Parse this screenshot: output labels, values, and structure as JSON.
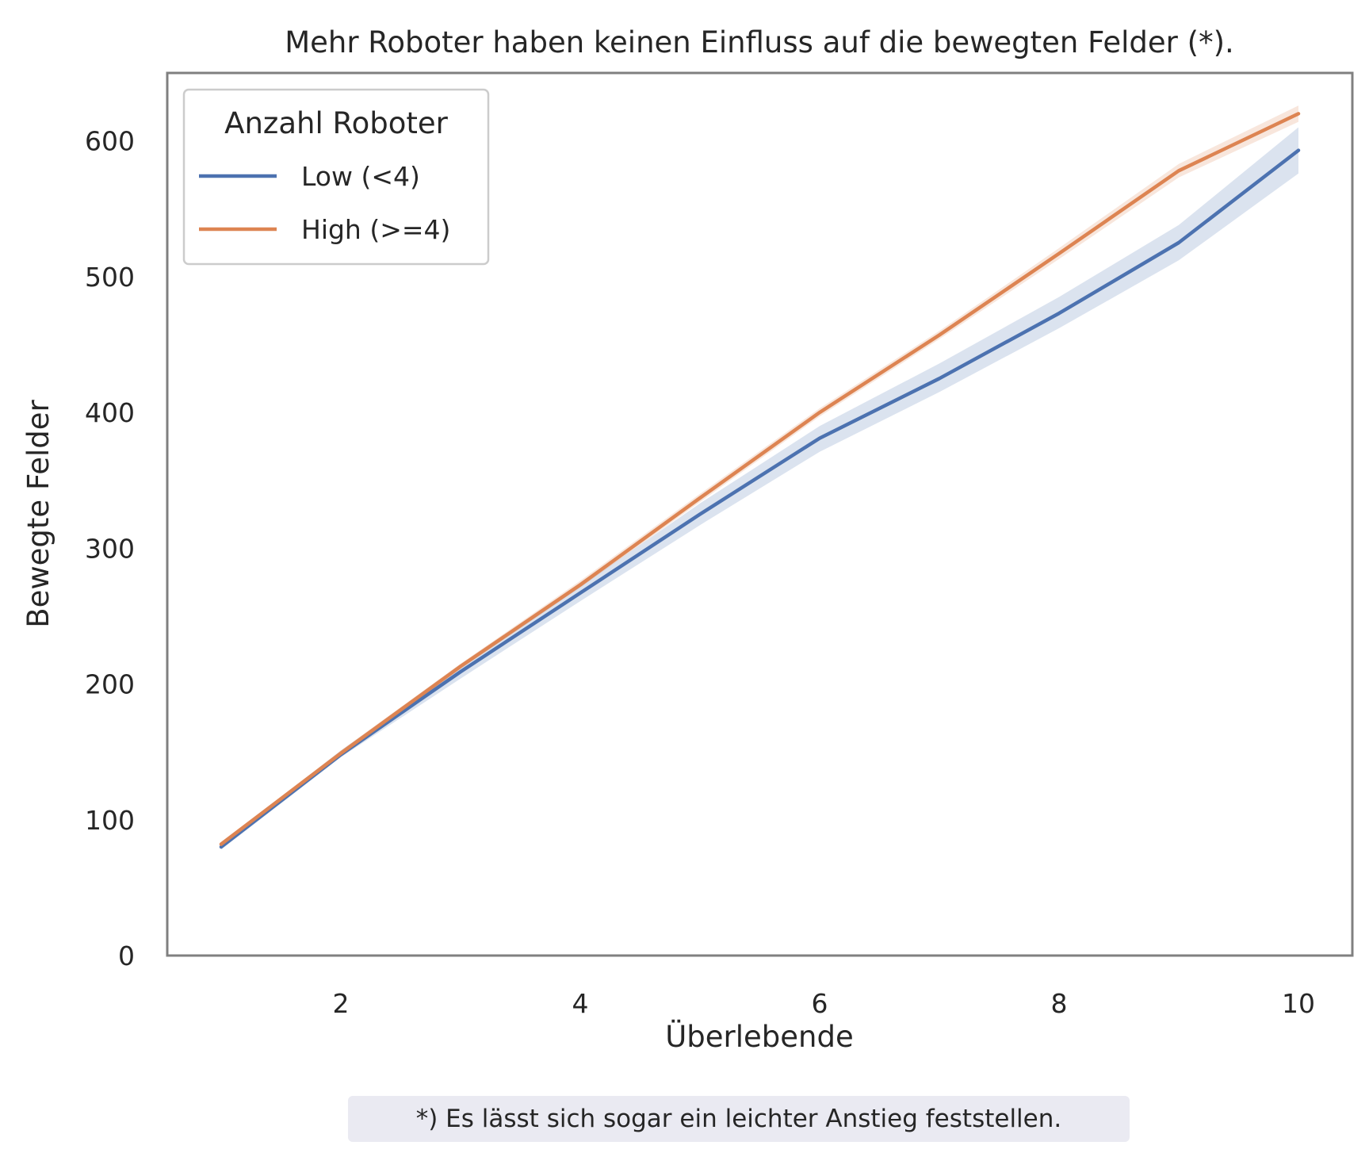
{
  "chart_data": {
    "type": "line",
    "title": "Mehr Roboter haben keinen Einfluss auf die bewegten Felder (*).",
    "xlabel": "Überlebende",
    "ylabel": "Bewegte Felder",
    "xlim": [
      0.55,
      10.45
    ],
    "ylim": [
      0,
      650
    ],
    "xticks": [
      2,
      4,
      6,
      8,
      10
    ],
    "yticks": [
      0,
      100,
      200,
      300,
      400,
      500,
      600
    ],
    "grid": false,
    "legend": {
      "title": "Anzahl Roboter",
      "placement": "top-left"
    },
    "x": [
      1,
      2,
      3,
      4,
      5,
      6,
      7,
      8,
      9,
      10
    ],
    "series": [
      {
        "name": "Low (<4)",
        "color": "#4c72b0",
        "values": [
          80,
          148,
          209,
          267,
          325,
          381,
          425,
          473,
          525,
          593
        ],
        "ci_lower": [
          78,
          146,
          204,
          261,
          317,
          371,
          415,
          462,
          512,
          576
        ],
        "ci_upper": [
          82,
          151,
          213,
          272,
          333,
          390,
          436,
          485,
          538,
          610
        ]
      },
      {
        "name": "High (>=4)",
        "color": "#dd8452",
        "values": [
          82,
          149,
          213,
          273,
          337,
          400,
          457,
          517,
          578,
          620
        ],
        "ci_lower": [
          81,
          147,
          211,
          271,
          334,
          397,
          454,
          513,
          573,
          614
        ],
        "ci_upper": [
          83,
          151,
          215,
          276,
          340,
          403,
          460,
          521,
          583,
          626
        ]
      }
    ],
    "footnote": "*) Es lässt sich sogar ein leichter Anstieg feststellen."
  }
}
